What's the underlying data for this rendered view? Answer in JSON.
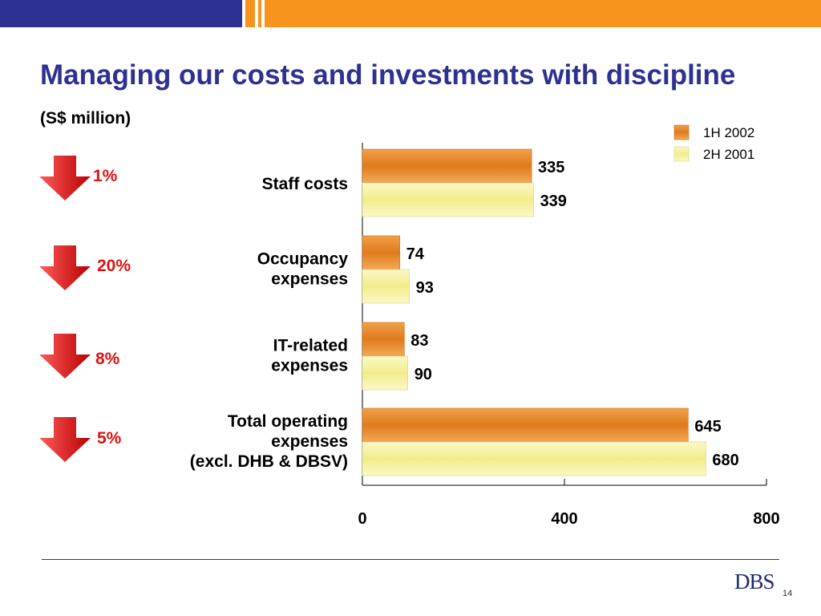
{
  "header": {
    "title": "Managing our costs and investments with discipline",
    "subtitle": "(S$ million)"
  },
  "colors": {
    "brand_blue": "#2e3192",
    "brand_orange": "#f7941d",
    "series_1h2002": "#e8892a",
    "series_2h2001": "#f7f3a3",
    "decline_red": "#e01010"
  },
  "indicators": [
    {
      "change": "1%",
      "icon": "down-arrow-icon"
    },
    {
      "change": "20%",
      "icon": "down-arrow-icon"
    },
    {
      "change": "8%",
      "icon": "down-arrow-icon"
    },
    {
      "change": "5%",
      "icon": "down-arrow-icon"
    }
  ],
  "chart_data": {
    "type": "bar",
    "orientation": "horizontal",
    "categories": [
      [
        "Staff costs"
      ],
      [
        "Occupancy",
        "expenses"
      ],
      [
        "IT-related",
        "expenses"
      ],
      [
        "Total operating",
        "expenses",
        "(excl. DHB & DBSV)"
      ]
    ],
    "series": [
      {
        "name": "1H 2002",
        "values": [
          335,
          74,
          83,
          645
        ]
      },
      {
        "name": "2H 2001",
        "values": [
          339,
          93,
          90,
          680
        ]
      }
    ],
    "xlim": [
      0,
      800
    ],
    "xticks": [
      0,
      400,
      800
    ],
    "grid": false,
    "legend": "top-right",
    "data_labels": true
  },
  "footer": {
    "logo_text": "DBS",
    "page_number": "14"
  }
}
